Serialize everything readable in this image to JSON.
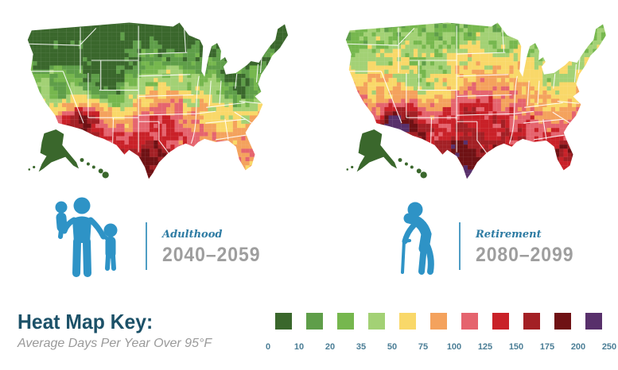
{
  "maps": [
    {
      "label": "Adulthood",
      "period": "2040–2059",
      "icon": "family-icon"
    },
    {
      "label": "Retirement",
      "period": "2080–2099",
      "icon": "elderly-cane-icon"
    }
  ],
  "legend": {
    "title": "Heat Map Key:",
    "subtitle": "Average Days Per Year Over 95°F",
    "bin_labels": [
      "0",
      "10",
      "20",
      "35",
      "50",
      "75",
      "100",
      "125",
      "150",
      "175",
      "200",
      "250"
    ],
    "bin_colors": [
      "#3a672c",
      "#5f9e49",
      "#76b74e",
      "#a3d175",
      "#f9d869",
      "#f4a25d",
      "#e5646e",
      "#c92128",
      "#a32025",
      "#6f1114",
      "#58306b"
    ]
  },
  "colors": {
    "accent_blue": "#2e93c6",
    "divider_blue": "#4f9dc4",
    "title_teal": "#1c5168",
    "subtitle_gray": "#9a9a9a",
    "period_gray": "#9e9e9e",
    "label_blue": "#2d7ba3",
    "bin_number_teal": "#4b7e96",
    "state_border": "#ffffff",
    "alaska_hawaii_green": "#3a672c"
  },
  "chart_data": {
    "type": "heatmap",
    "subtype": "choropleth-county-map-pair",
    "metric": "Average Days Per Year Over 95°F",
    "unit": "days per year",
    "bins": [
      0,
      10,
      20,
      35,
      50,
      75,
      100,
      125,
      150,
      175,
      200,
      250
    ],
    "bin_colors": [
      "#3a672c",
      "#5f9e49",
      "#76b74e",
      "#a3d175",
      "#f9d869",
      "#f4a25d",
      "#e5646e",
      "#c92128",
      "#a32025",
      "#6f1114",
      "#58306b"
    ],
    "legend_position": "bottom",
    "maps": [
      {
        "label": "Adulthood",
        "period": "2040–2059",
        "regional_pattern": {
          "northern_us_new_england_great_lakes": "0–20 days (dark/medium green)",
          "midwest_ohio_valley": "20–35 days (green)",
          "central_southern_plains": "50–100 days (yellow/orange)",
          "oklahoma_north_texas": "75–125 days (orange/salmon)",
          "south_texas": "125–200 days (red to dark red at tip)",
          "arizona_southeast_california": "125–200 days (red/dark red core)",
          "rockies_colorado": "0–10 days (dark green)",
          "southeast_gulf_states": "35–75 days (yellow with green patches)",
          "florida": "35–75 days (yellow/green, orange spots on west coast)",
          "alaska_hawaii": "0–10 days (dark green)"
        }
      },
      {
        "label": "Retirement",
        "period": "2080–2099",
        "regional_pattern": {
          "northern_us_new_england_great_lakes": "20–50 days (green/yellow mix)",
          "midwest_ohio_valley": "50–100 days (yellow/orange)",
          "central_us": "75–125 days (orange/salmon)",
          "south_gulf_states": "100–150 days (salmon/red)",
          "texas": "150–200 days (red/dark red)",
          "arizona_southeast_california": "175–250 days (maroon with purple spots)",
          "rockies_colorado": "20–35 days (green patch)",
          "florida": "100–175 days (orange/red, dark red coasts)",
          "alaska_hawaii": "0–10 days (dark green)"
        }
      }
    ]
  }
}
